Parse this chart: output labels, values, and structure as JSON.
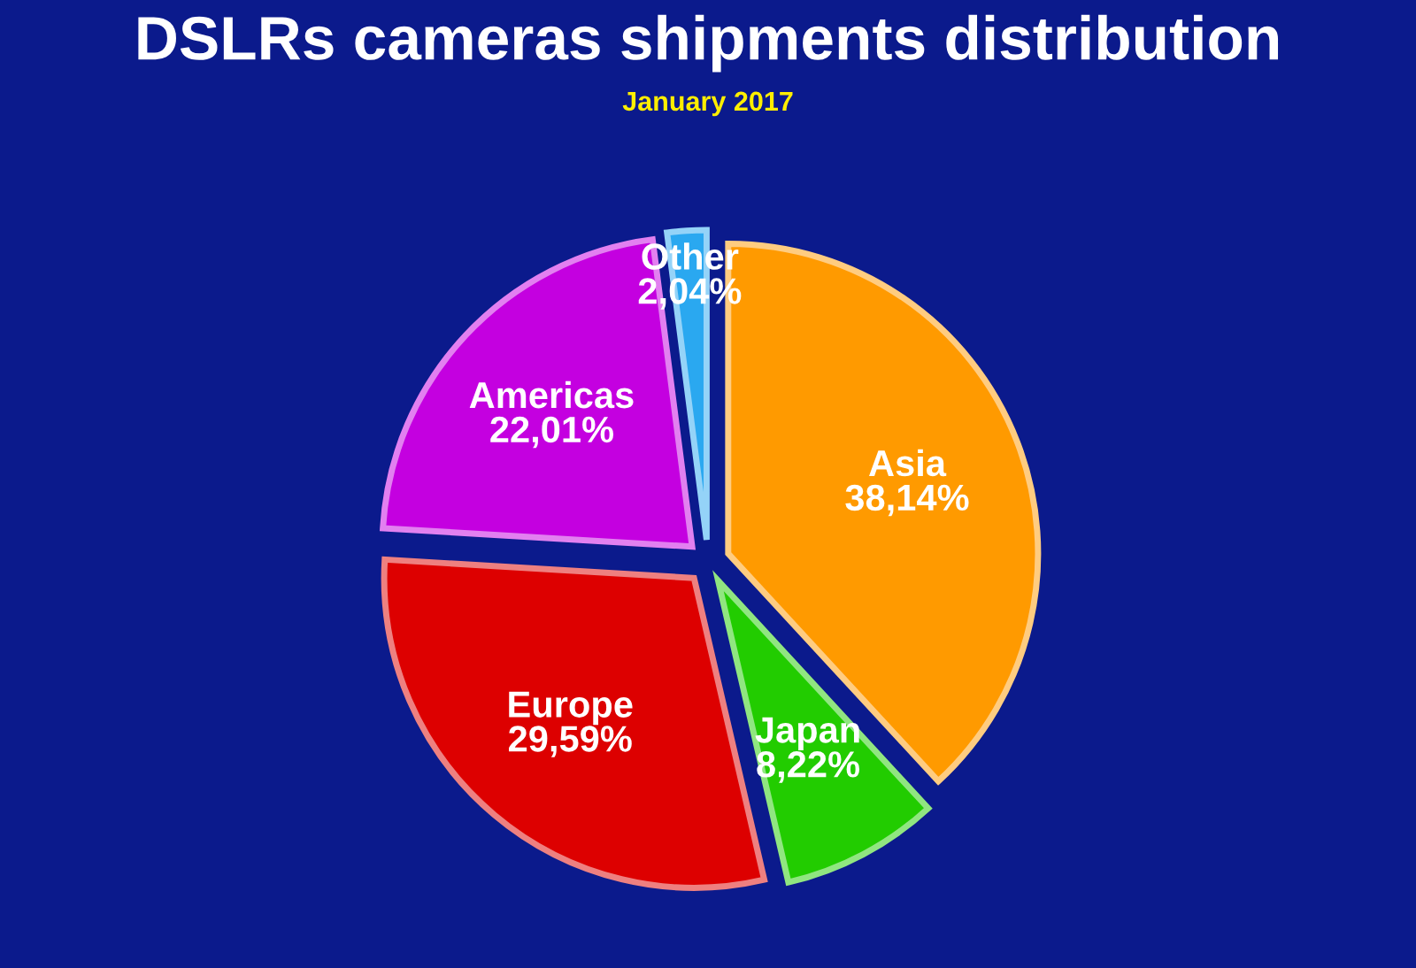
{
  "chart_data": {
    "type": "pie",
    "title": "DSLRs cameras shipments distribution",
    "subtitle": "January 2017",
    "categories": [
      "Asia",
      "Japan",
      "Europe",
      "Americas",
      "Other"
    ],
    "values": [
      38.14,
      8.22,
      29.59,
      22.01,
      2.04
    ],
    "colors": [
      "#ff9a00",
      "#22cc00",
      "#dd0000",
      "#c400e0",
      "#2aa8f0"
    ],
    "value_labels": [
      "38,14%",
      "8,22%",
      "29,59%",
      "22,01%",
      "2,04%"
    ]
  }
}
